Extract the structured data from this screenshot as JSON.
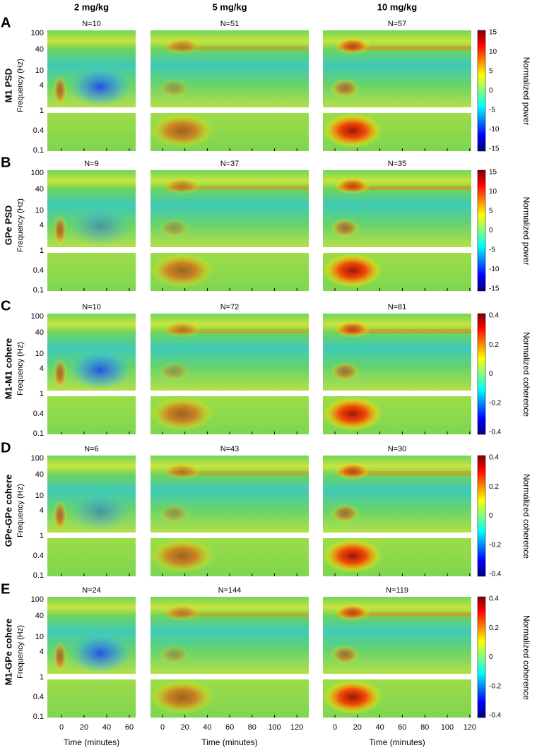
{
  "columns": [
    "2 mg/kg",
    "5 mg/kg",
    "10 mg/kg"
  ],
  "freq_ticks": [
    "100",
    "40",
    "10",
    "4",
    "1",
    "0.4",
    "0.1"
  ],
  "time_ticks": [
    [
      "0",
      "20",
      "40",
      "60"
    ],
    [
      "0",
      "20",
      "40",
      "60",
      "80",
      "100",
      "120"
    ],
    [
      "0",
      "20",
      "40",
      "60",
      "80",
      "100",
      "120"
    ]
  ],
  "x_label": "Time (minutes)",
  "panels": [
    {
      "letter": "A",
      "label": "M1 PSD",
      "y_label": "Frequency (Hz)",
      "n": [
        "N=10",
        "N=51",
        "N=57"
      ],
      "colorbar_label": "Normalized power",
      "colorbar_ticks": [
        "15",
        "10",
        "5",
        "0",
        "-5",
        "-10",
        "-15"
      ]
    },
    {
      "letter": "B",
      "label": "GPe PSD",
      "y_label": "Frequency (Hz)",
      "n": [
        "N=9",
        "N=37",
        "N=35"
      ],
      "colorbar_label": "Normalized power",
      "colorbar_ticks": [
        "15",
        "10",
        "5",
        "0",
        "-5",
        "-10",
        "-15"
      ]
    },
    {
      "letter": "C",
      "label": "M1-M1 cohere",
      "y_label": "Frequency (Hz)",
      "n": [
        "N=10",
        "N=72",
        "N=81"
      ],
      "colorbar_label": "Normalized coherence",
      "colorbar_ticks": [
        "0.4",
        "0.2",
        "0",
        "-0.2",
        "-0.4"
      ]
    },
    {
      "letter": "D",
      "label": "GPe-GPe cohere",
      "y_label": "Frequency (Hz)",
      "n": [
        "N=6",
        "N=43",
        "N=30"
      ],
      "colorbar_label": "Normalized coherence",
      "colorbar_ticks": [
        "0.4",
        "0.2",
        "0",
        "-0.2",
        "-0.4"
      ]
    },
    {
      "letter": "E",
      "label": "M1-GPe cohere",
      "y_label": "Frequency (Hz)",
      "n": [
        "N=24",
        "N=144",
        "N=119"
      ],
      "colorbar_label": "Normalized coherence",
      "colorbar_ticks": [
        "0.4",
        "0.2",
        "0",
        "-0.2",
        "-0.4"
      ]
    }
  ]
}
